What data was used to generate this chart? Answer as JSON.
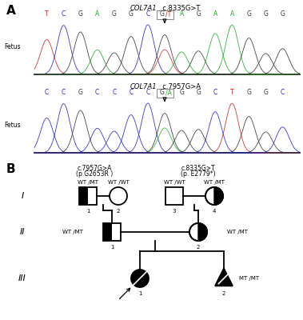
{
  "panel_A_label": "A",
  "panel_B_label": "B",
  "chrom1": {
    "title_italic": "COL7A1",
    "title_normal": "  c.8335G>T",
    "label": "Fetus",
    "bases": [
      "T",
      "C",
      "G",
      "A",
      "G",
      "G",
      "C",
      "G/T",
      "A",
      "G",
      "A",
      "A",
      "G",
      "G",
      "G"
    ],
    "highlight_index": 7
  },
  "chrom2": {
    "title_italic": "COL7A1",
    "title_normal": "  c.7957G>A",
    "label": "Fetus",
    "bases": [
      "C",
      "C",
      "G",
      "C",
      "C",
      "C",
      "C",
      "G/A",
      "G",
      "G",
      "C",
      "T",
      "G",
      "G",
      "C"
    ],
    "highlight_index": 7
  },
  "base_colors": {
    "T": "#cc2222",
    "C": "#2222cc",
    "G": "#333333",
    "A": "#22aa22"
  },
  "pedigree": {
    "variant1": [
      "c.7957G>A",
      "(p.G2653R )"
    ],
    "variant2": [
      "c.8335G>T",
      "(p. E2779*)"
    ],
    "gen_labels": [
      "I",
      "II",
      "III"
    ]
  },
  "background": "#ffffff"
}
